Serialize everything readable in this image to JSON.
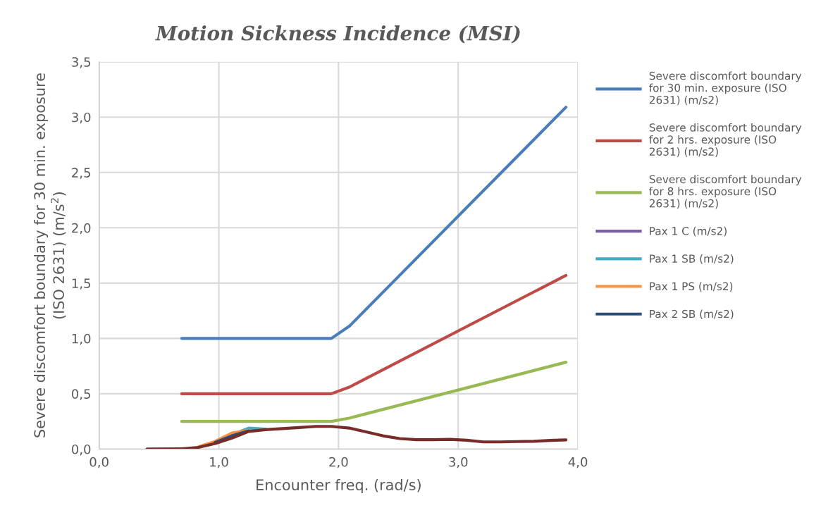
{
  "chart_data": {
    "type": "line",
    "title": "Motion Sickness Incidence (MSI)",
    "xlabel": "Encounter freq. (rad/s)",
    "ylabel": "Severe discomfort boundary for 30 min. exposure (ISO 2631) (m/s$^{2}$)",
    "xlim": [
      0,
      4
    ],
    "xticks": [
      {
        "value": 0,
        "label": "0,0"
      },
      {
        "value": 1,
        "label": "1,0"
      },
      {
        "value": 2,
        "label": "2,0"
      },
      {
        "value": 3,
        "label": "3,0"
      },
      {
        "value": 4,
        "label": "4,0"
      }
    ],
    "ylim": [
      0,
      3.5
    ],
    "yticks": [
      {
        "value": 0,
        "label": "0,0"
      },
      {
        "value": 0.5,
        "label": "0,5"
      },
      {
        "value": 1,
        "label": "1,0"
      },
      {
        "value": 1.5,
        "label": "1,5"
      },
      {
        "value": 2,
        "label": "2,0"
      },
      {
        "value": 2.5,
        "label": "2,5"
      },
      {
        "value": 3,
        "label": "3,0"
      },
      {
        "value": 3.5,
        "label": "3,5"
      }
    ],
    "grid": true,
    "legend": "right",
    "marker": "none",
    "line_style": "solid",
    "x": [
      0.4,
      0.69,
      0.83,
      0.97,
      1.11,
      1.25,
      1.39,
      1.53,
      1.67,
      1.81,
      1.94,
      2.09,
      2.23,
      2.37,
      2.51,
      2.65,
      2.79,
      2.93,
      3.07,
      3.21,
      3.35,
      3.49,
      3.63,
      3.77,
      3.9
    ],
    "series": [
      {
        "name": "Severe discomfort boundary for 30 min. exposure (ISO 2631) (m/s2)",
        "color": "#4a7ebb",
        "x": [
          0.69,
          1.94,
          2.09,
          3.9
        ],
        "values": [
          1.0,
          1.0,
          1.11,
          3.09
        ]
      },
      {
        "name": "Severe discomfort boundary for 2 hrs. exposure (ISO 2631) (m/s2)",
        "color": "#be4b48",
        "x": [
          0.69,
          1.94,
          2.09,
          3.9
        ],
        "values": [
          0.5,
          0.5,
          0.56,
          1.57
        ]
      },
      {
        "name": "Severe discomfort boundary for 8 hrs. exposure (ISO 2631) (m/s2)",
        "color": "#98b954",
        "x": [
          0.69,
          1.94,
          2.09,
          3.9
        ],
        "values": [
          0.25,
          0.25,
          0.28,
          0.785
        ]
      },
      {
        "name": "Pax 1 C (m/s2)",
        "color": "#7d60a0",
        "values": [
          null,
          null,
          null,
          null,
          null,
          null,
          null,
          null,
          null,
          null,
          null,
          null,
          null,
          null,
          null,
          null,
          null,
          null,
          null,
          null,
          null,
          null,
          null,
          null,
          null
        ]
      },
      {
        "name": "Pax 1 SB (m/s2)",
        "color": "#46aac5",
        "values": [
          null,
          null,
          null,
          0.065,
          0.13,
          0.19,
          0.18,
          null,
          null,
          null,
          null,
          null,
          null,
          null,
          null,
          null,
          null,
          null,
          null,
          null,
          null,
          null,
          null,
          null,
          null
        ]
      },
      {
        "name": "Pax 1 PS (m/s2)",
        "color": "#f69240",
        "values": [
          null,
          null,
          0.02,
          0.07,
          0.145,
          0.17,
          null,
          null,
          null,
          null,
          null,
          null,
          null,
          null,
          null,
          null,
          null,
          null,
          null,
          null,
          null,
          null,
          null,
          null,
          null
        ]
      },
      {
        "name": "Pax 2 SB (m/s2)",
        "color": "#2c4d75",
        "values": [
          null,
          null,
          null,
          0.06,
          0.12,
          0.165,
          null,
          null,
          null,
          null,
          null,
          null,
          null,
          null,
          null,
          null,
          null,
          null,
          null,
          null,
          null,
          null,
          null,
          null,
          null
        ]
      },
      {
        "color": "#772c2a",
        "values": [
          0,
          0.003,
          0.015,
          0.05,
          0.1,
          0.16,
          0.175,
          0.185,
          0.195,
          0.205,
          0.205,
          0.19,
          0.155,
          0.12,
          0.095,
          0.085,
          0.085,
          0.088,
          0.08,
          0.065,
          0.065,
          0.068,
          0.07,
          0.078,
          0.083
        ]
      }
    ]
  }
}
